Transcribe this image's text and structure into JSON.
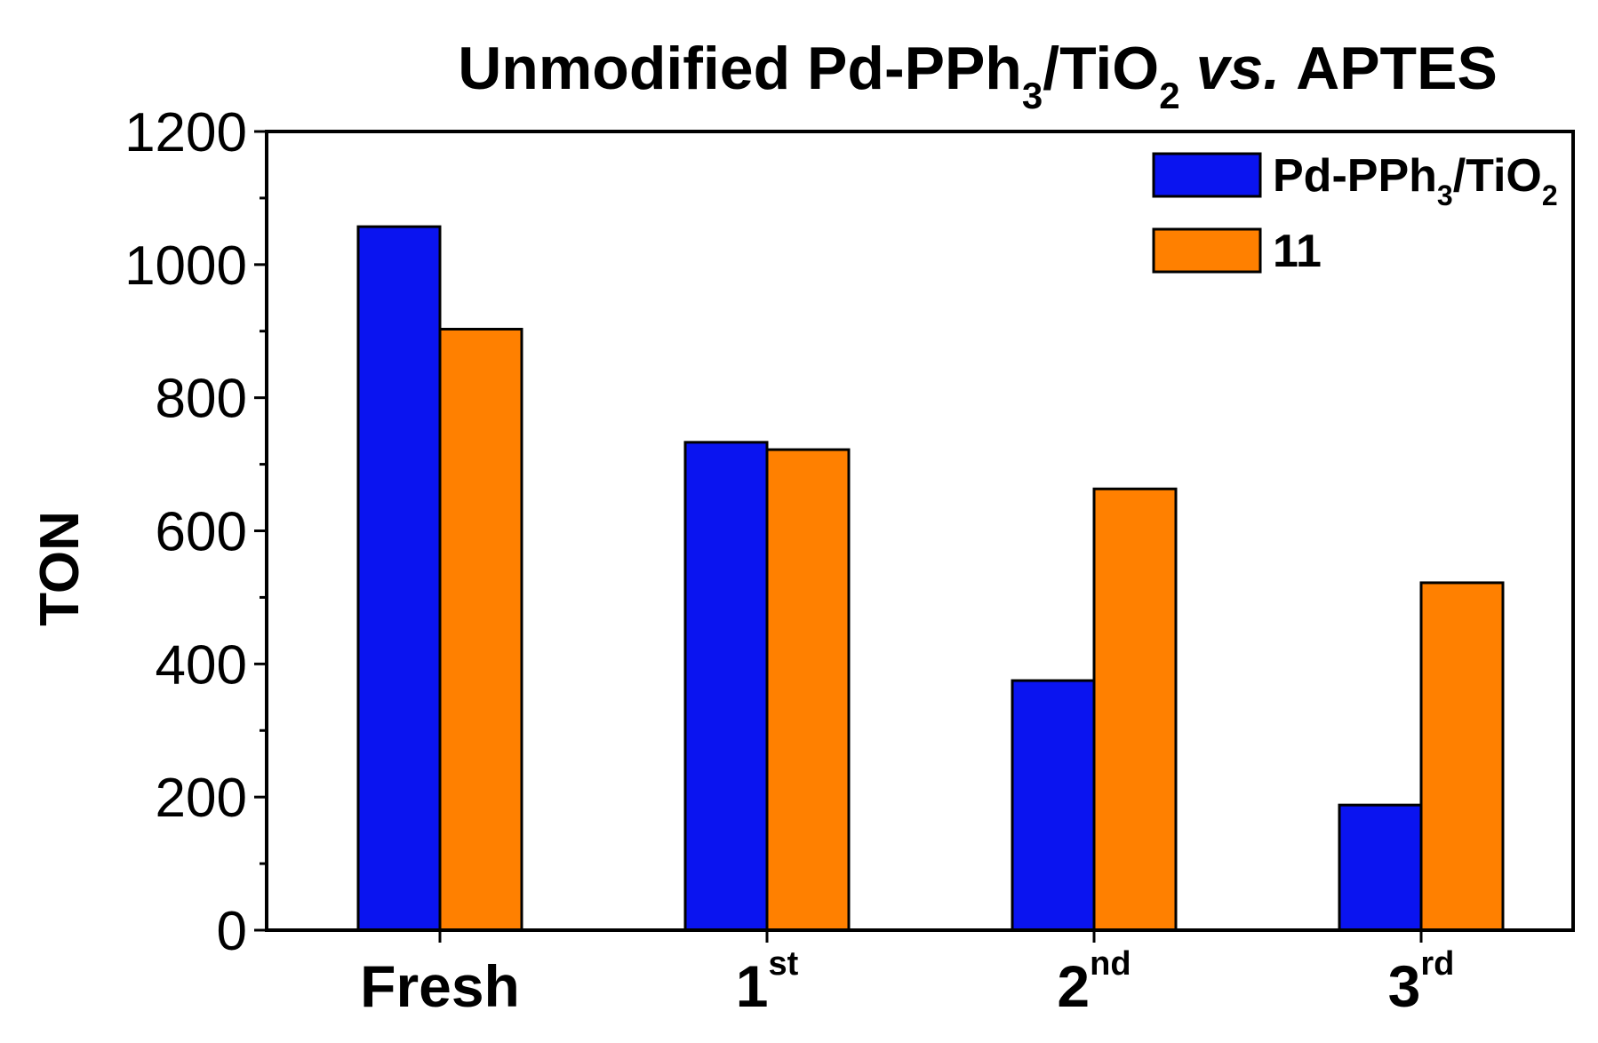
{
  "chart_data": {
    "type": "bar",
    "title": {
      "main": "Unmodified Pd-PPh",
      "sub1": "3",
      "mid": "/TiO",
      "sub2": "2",
      "italic": "vs.",
      "tail": "APTES"
    },
    "ylabel": "TON",
    "xlabel": "",
    "ylim": [
      0,
      1200
    ],
    "yticks": [
      0,
      200,
      400,
      600,
      800,
      1000,
      1200
    ],
    "categories": [
      {
        "base": "Fresh",
        "sup": ""
      },
      {
        "base": "1",
        "sup": "st"
      },
      {
        "base": "2",
        "sup": "nd"
      },
      {
        "base": "3",
        "sup": "rd"
      }
    ],
    "series": [
      {
        "legend": {
          "main": "Pd-PPh",
          "sub1": "3",
          "mid": "/TiO",
          "sub2": "2"
        },
        "color": "#0a14f0",
        "values": [
          1057,
          733,
          375,
          188
        ]
      },
      {
        "legend": {
          "main": "11"
        },
        "color": "#ff8000",
        "values": [
          903,
          722,
          663,
          522
        ]
      }
    ],
    "grid": false,
    "legend_position": "top-right"
  }
}
